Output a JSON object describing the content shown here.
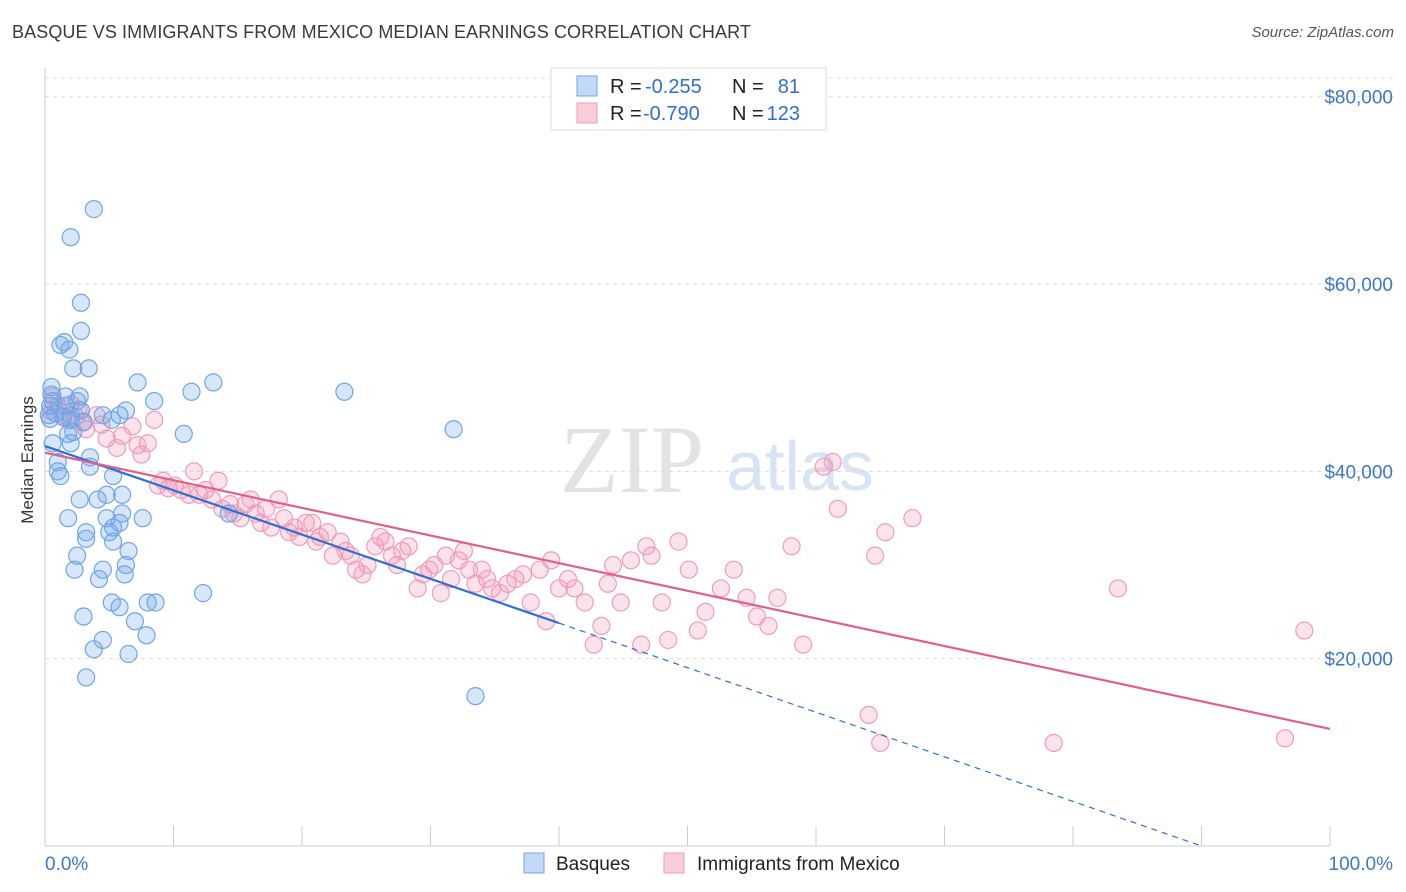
{
  "header": {
    "title": "BASQUE VS IMMIGRANTS FROM MEXICO MEDIAN EARNINGS CORRELATION CHART",
    "source": "Source: ZipAtlas.com"
  },
  "watermark": {
    "zip": "ZIP",
    "atlas": "atlas"
  },
  "chart_data": {
    "type": "scatter",
    "title": "BASQUE VS IMMIGRANTS FROM MEXICO MEDIAN EARNINGS CORRELATION CHART",
    "xlabel": "",
    "ylabel": "Median Earnings",
    "xlim": [
      0,
      100
    ],
    "ylim": [
      0,
      82000
    ],
    "x_tick_labels": [
      "0.0%",
      "100.0%"
    ],
    "y_ticks": [
      20000,
      40000,
      60000,
      80000
    ],
    "y_tick_labels": [
      "$20,000",
      "$40,000",
      "$60,000",
      "$80,000"
    ],
    "grid": true,
    "legend": {
      "placement": "top-center",
      "rows": [
        {
          "r_label": "R =",
          "r_value": "-0.255",
          "n_label": "N =",
          "n_value": "81"
        },
        {
          "r_label": "R =",
          "r_value": "-0.790",
          "n_label": "N =",
          "n_value": "123"
        }
      ]
    },
    "bottom_legend": [
      "Basques",
      "Immigrants from Mexico"
    ],
    "series": [
      {
        "name": "Basques",
        "color": "#6fa6e6",
        "line_color": "#2f6fd0",
        "trend": {
          "x0": 0,
          "y0": 42700,
          "x1": 40,
          "y1": 23800,
          "dashed_to_x": 90,
          "dashed_to_y": 0
        },
        "points": [
          [
            0.3,
            46000
          ],
          [
            0.4,
            47000
          ],
          [
            0.4,
            45600
          ],
          [
            0.5,
            49000
          ],
          [
            0.5,
            48200
          ],
          [
            0.6,
            47500
          ],
          [
            0.6,
            43000
          ],
          [
            0.8,
            46200
          ],
          [
            1.0,
            41000
          ],
          [
            1.0,
            40000
          ],
          [
            1.2,
            39500
          ],
          [
            1.2,
            53500
          ],
          [
            1.5,
            53800
          ],
          [
            1.6,
            48000
          ],
          [
            1.8,
            44000
          ],
          [
            1.8,
            35000
          ],
          [
            1.9,
            53000
          ],
          [
            2.0,
            65000
          ],
          [
            2.0,
            43000
          ],
          [
            2.0,
            45500
          ],
          [
            2.2,
            51000
          ],
          [
            2.2,
            44200
          ],
          [
            2.5,
            47500
          ],
          [
            2.7,
            48000
          ],
          [
            2.7,
            37000
          ],
          [
            2.5,
            31000
          ],
          [
            2.3,
            29500
          ],
          [
            2.8,
            55000
          ],
          [
            2.8,
            58000
          ],
          [
            2.8,
            46500
          ],
          [
            3.0,
            45300
          ],
          [
            3.0,
            24500
          ],
          [
            3.2,
            33500
          ],
          [
            3.2,
            32800
          ],
          [
            3.4,
            51000
          ],
          [
            3.2,
            18000
          ],
          [
            3.5,
            40500
          ],
          [
            3.5,
            41500
          ],
          [
            3.8,
            68000
          ],
          [
            3.8,
            21000
          ],
          [
            4.1,
            37000
          ],
          [
            4.2,
            28500
          ],
          [
            4.5,
            22000
          ],
          [
            4.5,
            29500
          ],
          [
            4.5,
            46000
          ],
          [
            4.8,
            37500
          ],
          [
            4.8,
            35000
          ],
          [
            5.0,
            33500
          ],
          [
            5.2,
            45500
          ],
          [
            5.2,
            26000
          ],
          [
            5.3,
            39500
          ],
          [
            5.3,
            34000
          ],
          [
            5.3,
            32500
          ],
          [
            5.8,
            34500
          ],
          [
            5.8,
            46000
          ],
          [
            5.8,
            25500
          ],
          [
            6.0,
            37500
          ],
          [
            6.0,
            35500
          ],
          [
            6.2,
            29000
          ],
          [
            6.3,
            30000
          ],
          [
            6.3,
            46500
          ],
          [
            6.5,
            20500
          ],
          [
            6.5,
            31500
          ],
          [
            7.0,
            24000
          ],
          [
            7.2,
            49500
          ],
          [
            7.6,
            35000
          ],
          [
            7.9,
            22500
          ],
          [
            8.0,
            26000
          ],
          [
            8.6,
            26000
          ],
          [
            8.5,
            47500
          ],
          [
            10.8,
            44000
          ],
          [
            11.4,
            48500
          ],
          [
            12.3,
            27000
          ],
          [
            13.1,
            49500
          ],
          [
            14.3,
            35500
          ],
          [
            23.3,
            48500
          ],
          [
            31.8,
            44500
          ],
          [
            33.5,
            16000
          ],
          [
            2.0,
            46000
          ],
          [
            1.4,
            45800
          ],
          [
            1.6,
            47000
          ]
        ]
      },
      {
        "name": "Immigrants from Mexico",
        "color": "#f29bb8",
        "line_color": "#e0608a",
        "trend": {
          "x0": 0,
          "y0": 42000,
          "x1": 100,
          "y1": 12500
        },
        "points": [
          [
            0.4,
            46500
          ],
          [
            0.6,
            48000
          ],
          [
            1.0,
            47000
          ],
          [
            1.4,
            46000
          ],
          [
            1.8,
            45500
          ],
          [
            2.0,
            47200
          ],
          [
            2.4,
            45800
          ],
          [
            2.6,
            46600
          ],
          [
            3.0,
            45200
          ],
          [
            3.2,
            44500
          ],
          [
            4.0,
            46000
          ],
          [
            4.4,
            45000
          ],
          [
            4.8,
            43500
          ],
          [
            5.6,
            42500
          ],
          [
            6.0,
            43800
          ],
          [
            6.8,
            44800
          ],
          [
            7.2,
            42800
          ],
          [
            7.5,
            41800
          ],
          [
            8.0,
            43000
          ],
          [
            8.5,
            45500
          ],
          [
            8.8,
            38500
          ],
          [
            9.2,
            39000
          ],
          [
            9.6,
            38200
          ],
          [
            10.1,
            38500
          ],
          [
            10.6,
            38000
          ],
          [
            11.2,
            37500
          ],
          [
            11.6,
            40000
          ],
          [
            12.0,
            37500
          ],
          [
            12.5,
            38000
          ],
          [
            13.0,
            37000
          ],
          [
            13.5,
            39000
          ],
          [
            13.8,
            36000
          ],
          [
            14.4,
            36500
          ],
          [
            14.7,
            35500
          ],
          [
            15.2,
            35000
          ],
          [
            15.6,
            36500
          ],
          [
            16.0,
            37000
          ],
          [
            16.4,
            35500
          ],
          [
            16.8,
            34500
          ],
          [
            17.2,
            36000
          ],
          [
            17.6,
            34000
          ],
          [
            18.2,
            37000
          ],
          [
            18.6,
            35000
          ],
          [
            19.0,
            33500
          ],
          [
            19.4,
            34000
          ],
          [
            19.8,
            33000
          ],
          [
            20.3,
            34500
          ],
          [
            20.8,
            34500
          ],
          [
            21.1,
            32500
          ],
          [
            21.4,
            33000
          ],
          [
            22.0,
            33500
          ],
          [
            22.4,
            31000
          ],
          [
            23.0,
            32500
          ],
          [
            23.4,
            31500
          ],
          [
            23.8,
            31000
          ],
          [
            24.2,
            29500
          ],
          [
            24.7,
            29000
          ],
          [
            25.1,
            30000
          ],
          [
            25.7,
            32000
          ],
          [
            26.1,
            33000
          ],
          [
            26.5,
            32500
          ],
          [
            27.0,
            31000
          ],
          [
            27.4,
            30000
          ],
          [
            27.8,
            31500
          ],
          [
            28.3,
            32000
          ],
          [
            29.0,
            27500
          ],
          [
            29.4,
            29000
          ],
          [
            29.9,
            29500
          ],
          [
            30.3,
            30000
          ],
          [
            30.8,
            27000
          ],
          [
            31.2,
            31000
          ],
          [
            31.6,
            28500
          ],
          [
            32.2,
            30500
          ],
          [
            32.6,
            31500
          ],
          [
            33.0,
            29500
          ],
          [
            33.5,
            28000
          ],
          [
            34.0,
            29500
          ],
          [
            34.4,
            28500
          ],
          [
            34.8,
            27500
          ],
          [
            35.4,
            27000
          ],
          [
            36.0,
            28000
          ],
          [
            36.6,
            28500
          ],
          [
            37.2,
            29000
          ],
          [
            37.8,
            26000
          ],
          [
            38.5,
            29500
          ],
          [
            39.0,
            24000
          ],
          [
            39.4,
            30500
          ],
          [
            40.0,
            27500
          ],
          [
            40.7,
            28500
          ],
          [
            41.2,
            27500
          ],
          [
            42.0,
            26000
          ],
          [
            42.7,
            21500
          ],
          [
            43.3,
            23500
          ],
          [
            43.8,
            28000
          ],
          [
            44.2,
            30000
          ],
          [
            44.8,
            26000
          ],
          [
            45.6,
            30500
          ],
          [
            46.4,
            21500
          ],
          [
            46.8,
            32000
          ],
          [
            47.2,
            31000
          ],
          [
            48.0,
            26000
          ],
          [
            48.5,
            22000
          ],
          [
            49.3,
            32500
          ],
          [
            50.1,
            29500
          ],
          [
            50.8,
            23000
          ],
          [
            51.4,
            25000
          ],
          [
            52.6,
            27500
          ],
          [
            53.6,
            29500
          ],
          [
            54.6,
            26500
          ],
          [
            55.4,
            24500
          ],
          [
            56.3,
            23500
          ],
          [
            57.0,
            26500
          ],
          [
            58.1,
            32000
          ],
          [
            59.0,
            21500
          ],
          [
            60.6,
            40500
          ],
          [
            61.3,
            41000
          ],
          [
            61.7,
            36000
          ],
          [
            64.1,
            14000
          ],
          [
            64.6,
            31000
          ],
          [
            65.4,
            33500
          ],
          [
            67.5,
            35000
          ],
          [
            78.5,
            11000
          ],
          [
            83.5,
            27500
          ],
          [
            96.5,
            11500
          ],
          [
            98.0,
            23000
          ],
          [
            65.0,
            11000
          ]
        ]
      }
    ]
  }
}
